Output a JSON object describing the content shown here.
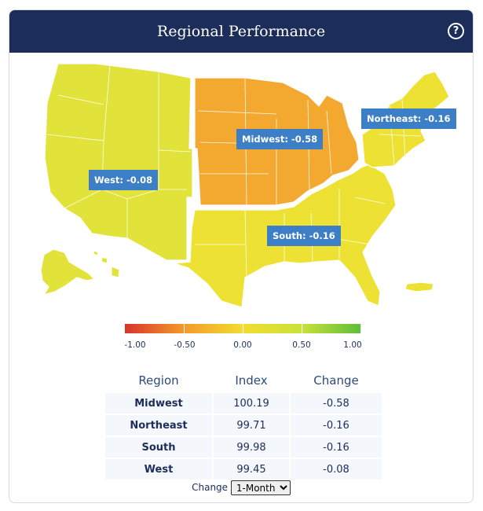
{
  "title": "Regional Performance",
  "help_icon": "question-circle-icon",
  "map": {
    "labels": [
      {
        "key": "midwest",
        "text": "Midwest: -0.58"
      },
      {
        "key": "northeast",
        "text": "Northeast: -0.16"
      },
      {
        "key": "west",
        "text": "West: -0.08"
      },
      {
        "key": "south",
        "text": "South: -0.16"
      }
    ],
    "colors": {
      "west": "#e2e33a",
      "midwest": "#f3a930",
      "south": "#ede234",
      "northeast": "#ede234"
    }
  },
  "legend": {
    "ticks": [
      "-1.00",
      "-0.50",
      "0.00",
      "0.50",
      "1.00"
    ],
    "colors": [
      "#d9332a",
      "#f39a2a",
      "#f2dc2e",
      "#c9e23a",
      "#5dbe3a"
    ]
  },
  "table": {
    "headers": {
      "region": "Region",
      "index": "Index",
      "change": "Change"
    },
    "rows": [
      {
        "region": "Midwest",
        "index": "100.19",
        "change": "-0.58"
      },
      {
        "region": "Northeast",
        "index": "99.71",
        "change": "-0.16"
      },
      {
        "region": "South",
        "index": "99.98",
        "change": "-0.16"
      },
      {
        "region": "West",
        "index": "99.45",
        "change": "-0.08"
      }
    ]
  },
  "controls": {
    "change_label": "Change",
    "selected": "1-Month"
  }
}
